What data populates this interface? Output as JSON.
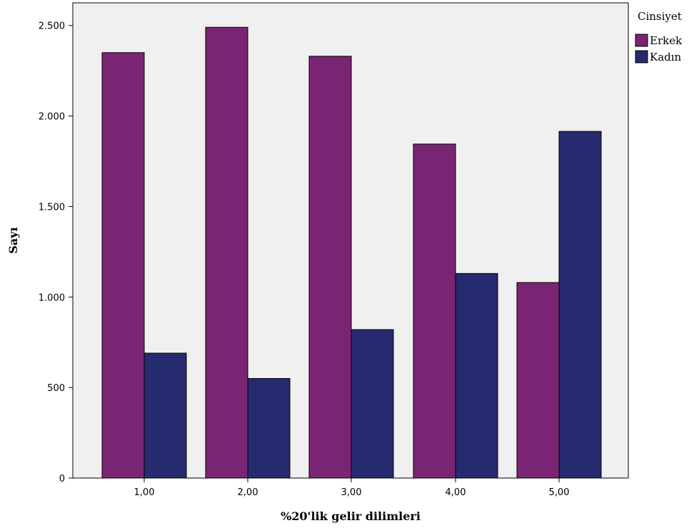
{
  "chart_data": {
    "type": "bar",
    "categories": [
      "1,00",
      "2,00",
      "3,00",
      "4,00",
      "5,00"
    ],
    "series": [
      {
        "name": "Erkek",
        "color": "#7a2574",
        "values": [
          2350,
          2490,
          2330,
          1845,
          1080
        ]
      },
      {
        "name": "Kadın",
        "color": "#262a6e",
        "values": [
          690,
          550,
          820,
          1130,
          1915
        ]
      }
    ],
    "xlabel": "%20'lik gelir dilimleri",
    "ylabel": "Sayı",
    "ylim": [
      0,
      2625
    ],
    "yticks": [
      {
        "value": 0,
        "label": "0"
      },
      {
        "value": 500,
        "label": "500"
      },
      {
        "value": 1000,
        "label": "1.000"
      },
      {
        "value": 1500,
        "label": "1.500"
      },
      {
        "value": 2000,
        "label": "2.000"
      },
      {
        "value": 2500,
        "label": "2.500"
      }
    ],
    "legend": {
      "title": "Cinsiyet",
      "position": "right"
    },
    "grid": false,
    "plot_background": "#f0f0f0"
  }
}
